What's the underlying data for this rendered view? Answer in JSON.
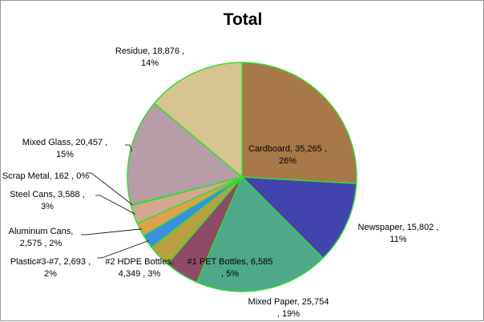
{
  "chart_data": {
    "type": "pie",
    "title": "Total",
    "slices": [
      {
        "name": "Cardboard",
        "value": 35265,
        "value_label": "35,265",
        "pct": "26%",
        "color": "#a87848",
        "lines": [
          "Cardboard,  35,265 ,",
          "26%"
        ]
      },
      {
        "name": "Newspaper",
        "value": 15802,
        "value_label": "15,802",
        "pct": "11%",
        "color": "#4343b0",
        "lines": [
          "Newspaper,  15,802 ,",
          "11%"
        ]
      },
      {
        "name": "Mixed Paper",
        "value": 25754,
        "value_label": "25,754",
        "pct": "19%",
        "color": "#4fa88a",
        "lines": [
          "Mixed Paper,  25,754",
          ", 19%"
        ]
      },
      {
        "name": "#1 PET Bottles",
        "value": 6585,
        "value_label": "6,585",
        "pct": "5%",
        "color": "#8f4a68",
        "lines": [
          "#1 PET Bottles,  6,585",
          ", 5%"
        ]
      },
      {
        "name": "#2 HDPE Bottles",
        "value": 4349,
        "value_label": "4,349",
        "pct": "3%",
        "color": "#b8a040",
        "lines": [
          "#2 HDPE Bottles,",
          "4,349 , 3%"
        ]
      },
      {
        "name": "Plastic#3-#7",
        "value": 2693,
        "value_label": "2,693",
        "pct": "2%",
        "color": "#3c8ee0",
        "lines": [
          "Plastic#3-#7,   2,693 ,",
          "2%"
        ]
      },
      {
        "name": "Aluminum Cans",
        "value": 2575,
        "value_label": "2,575",
        "pct": "2%",
        "color": "#e0a050",
        "lines": [
          "Aluminum Cans,",
          "2,575 , 2%"
        ]
      },
      {
        "name": "Steel Cans",
        "value": 3588,
        "value_label": "3,588",
        "pct": "3%",
        "color": "#d4a890",
        "lines": [
          "Steel Cans,  3,588 ,",
          "3%"
        ]
      },
      {
        "name": "Scrap Metal",
        "value": 162,
        "value_label": "162",
        "pct": "0%",
        "color": "#7ab0d8",
        "lines": [
          "Scrap Metal,  162 , 0%"
        ]
      },
      {
        "name": "Mixed Glass",
        "value": 20457,
        "value_label": "20,457",
        "pct": "15%",
        "color": "#b89ca8",
        "lines": [
          "Mixed Glass,  20,457 ,",
          "15%"
        ]
      },
      {
        "name": "Residue",
        "value": 18876,
        "value_label": "18,876",
        "pct": "14%",
        "color": "#d8c490",
        "lines": [
          "Residue,  18,876 ,",
          "14%"
        ]
      }
    ],
    "slice_outline_color": "#33dd33",
    "legend": "none"
  }
}
